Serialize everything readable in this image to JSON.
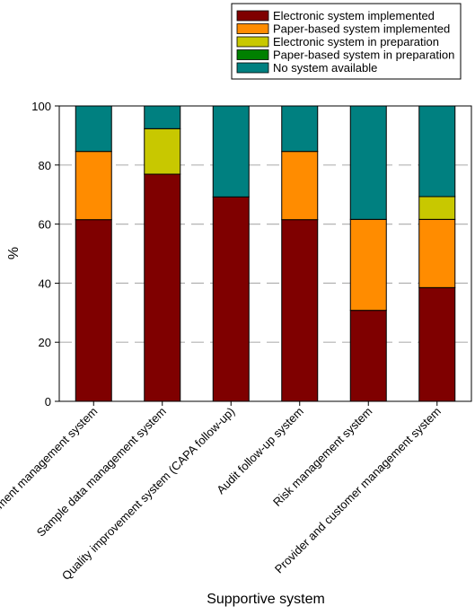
{
  "chart_data": {
    "type": "bar",
    "stacked": true,
    "categories": [
      "Document management system",
      "Sample data management system",
      "Quality improvement system (CAPA follow-up)",
      "Audit follow-up system",
      "Risk management system",
      "Provider and customer management system"
    ],
    "series": [
      {
        "name": "Electronic system implemented",
        "color": "#7f0000",
        "values": [
          61.5,
          76.9,
          69.2,
          61.5,
          30.8,
          38.5
        ]
      },
      {
        "name": "Paper-based system implemented",
        "color": "#ff8c00",
        "values": [
          23.1,
          0,
          0,
          23.1,
          30.8,
          23.1
        ]
      },
      {
        "name": "Electronic system in preparation",
        "color": "#c8c800",
        "values": [
          0,
          15.4,
          0,
          0,
          0,
          7.7
        ]
      },
      {
        "name": "Paper-based system in preparation",
        "color": "#008000",
        "values": [
          0,
          0,
          0,
          0,
          0,
          0
        ]
      },
      {
        "name": "No system available",
        "color": "#008080",
        "values": [
          15.4,
          7.7,
          30.8,
          15.4,
          38.4,
          30.7
        ]
      }
    ],
    "xlabel": "Supportive system",
    "ylabel": "%",
    "ylim": [
      0,
      100
    ],
    "yticks": [
      0,
      20,
      40,
      60,
      80,
      100
    ],
    "gridlines": "horizontal-dashed",
    "legend_position": "top-right"
  }
}
